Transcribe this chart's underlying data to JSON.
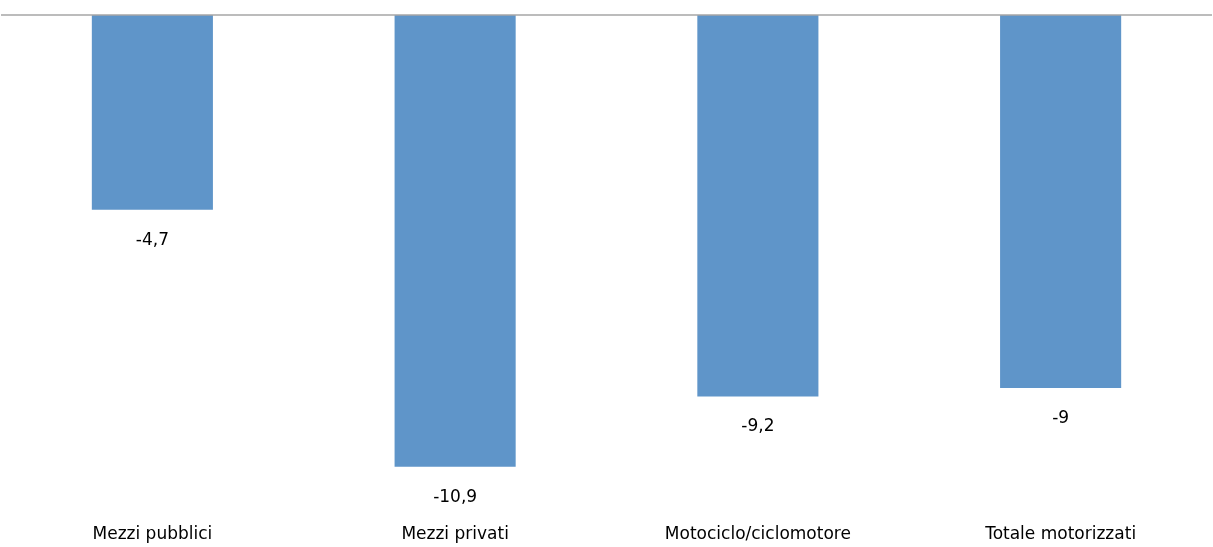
{
  "chart_data": {
    "type": "bar",
    "categories": [
      "Mezzi pubblici",
      "Mezzi privati",
      "Motociclo/ciclomotore",
      "Totale motorizzati"
    ],
    "values": [
      -4.7,
      -10.9,
      -9.2,
      -9
    ],
    "value_labels": [
      "-4,7",
      "-10,9",
      "-9,2",
      "-9"
    ],
    "color": "#5f95c9"
  }
}
